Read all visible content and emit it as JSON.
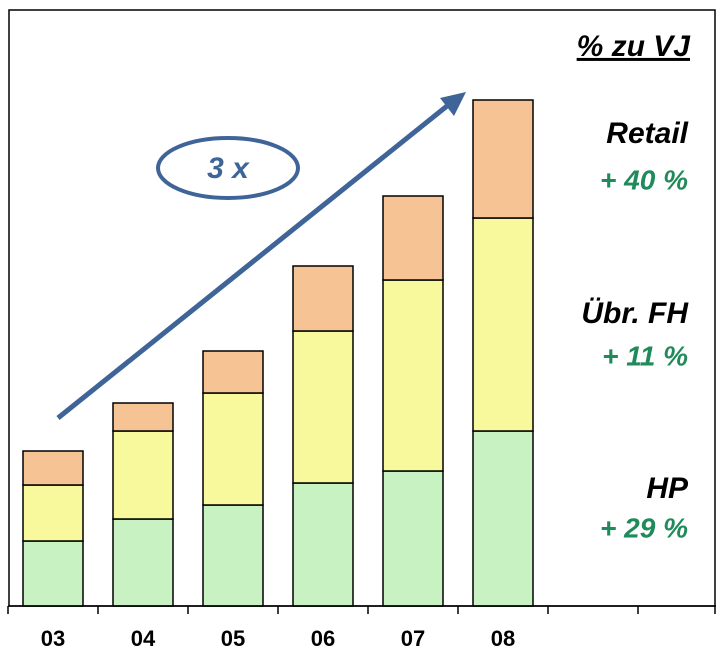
{
  "chart_data": {
    "type": "stacked_bar",
    "title": "% zu VJ",
    "annotation": "3 x",
    "categories": [
      "03",
      "04",
      "05",
      "06",
      "07",
      "08"
    ],
    "series": [
      {
        "name": "HP",
        "change": "+ 29 %",
        "color": "#c8f2c2",
        "values": [
          65,
          87,
          101,
          123,
          135,
          175
        ]
      },
      {
        "name": "Übr. FH",
        "change": "+ 11 %",
        "color": "#f8f89c",
        "values": [
          56,
          88,
          112,
          152,
          191,
          213
        ]
      },
      {
        "name": "Retail",
        "change": "+ 40 %",
        "color": "#f6c394",
        "values": [
          34,
          28,
          42,
          65,
          84,
          118
        ]
      }
    ],
    "ylim": [
      0,
      600
    ]
  }
}
